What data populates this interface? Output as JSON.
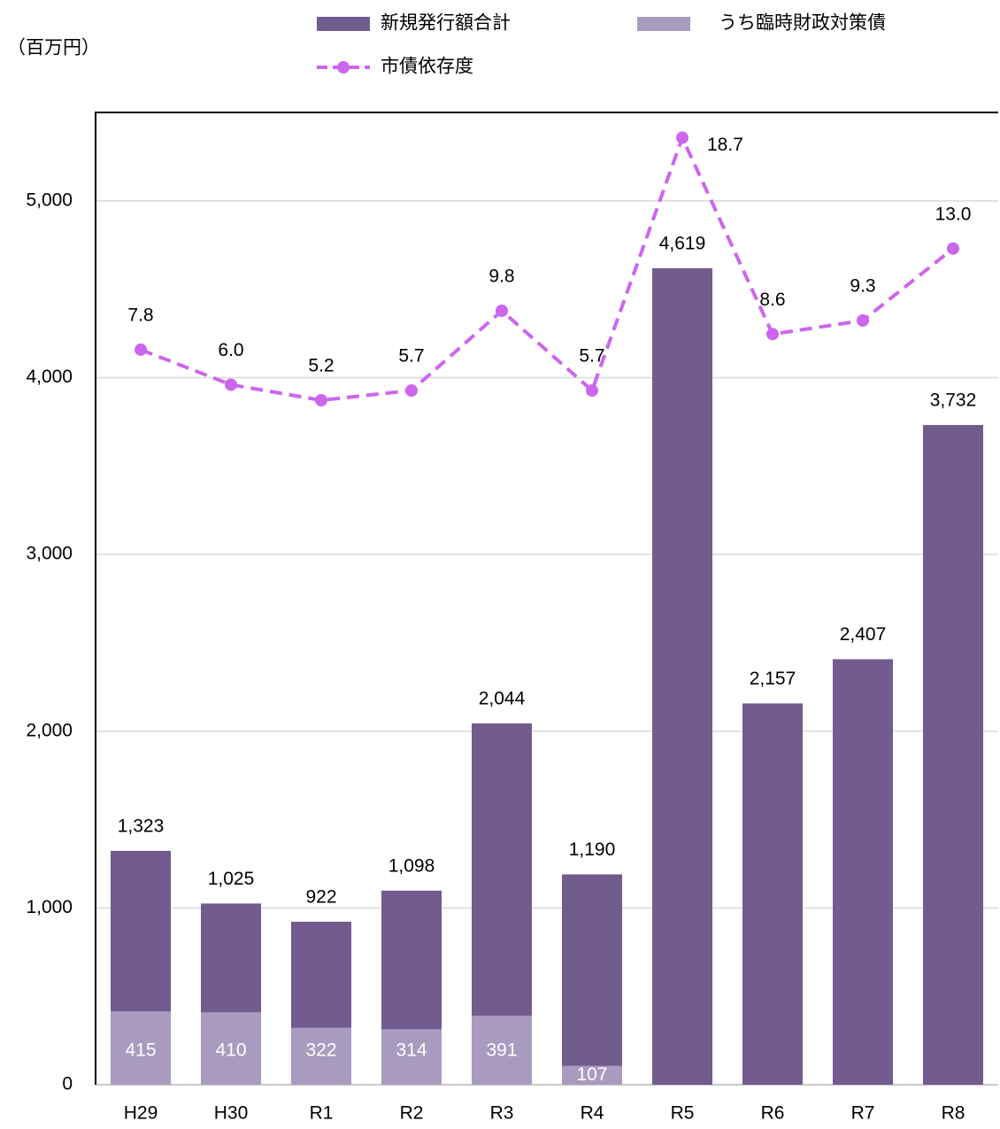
{
  "chart_data": {
    "type": "bar-line",
    "y_axis_label": "（百万円）",
    "categories": [
      "H29",
      "H30",
      "R1",
      "R2",
      "R3",
      "R4",
      "R5",
      "R6",
      "R7",
      "R8"
    ],
    "series": [
      {
        "name": "新規発行額合計",
        "type": "bar",
        "color": "#725b8f",
        "values": [
          1323,
          1025,
          922,
          1098,
          2044,
          1190,
          4619,
          2157,
          2407,
          3732
        ],
        "value_labels": [
          "1,323",
          "1,025",
          "922",
          "1,098",
          "2,044",
          "1,190",
          "4,619",
          "2,157",
          "2,407",
          "3,732"
        ]
      },
      {
        "name": "うち臨時財政対策債",
        "type": "bar",
        "color": "#a99bbf",
        "values": [
          415,
          410,
          322,
          314,
          391,
          107,
          null,
          null,
          null,
          null
        ]
      },
      {
        "name": "市債依存度",
        "type": "line",
        "axis": "y2",
        "color": "#cc66ee",
        "values": [
          7.8,
          6.0,
          5.2,
          5.7,
          9.8,
          5.7,
          18.7,
          8.6,
          9.3,
          13.0
        ],
        "value_labels": [
          "7.8",
          "6.0",
          "5.2",
          "5.7",
          "9.8",
          "5.7",
          "18.7",
          "8.6",
          "9.3",
          "13.0"
        ]
      }
    ],
    "ylim": [
      0,
      5500
    ],
    "yticks": [
      0,
      {
        "value": 1000,
        "label": "1,000"
      },
      {
        "value": 2000,
        "label": "2,000"
      },
      {
        "value": 3000,
        "label": "3,000"
      },
      {
        "value": 4000,
        "label": "4,000"
      },
      {
        "value": 5000,
        "label": "5,000"
      }
    ],
    "y2lim": [
      -30,
      20
    ],
    "grid": true
  }
}
